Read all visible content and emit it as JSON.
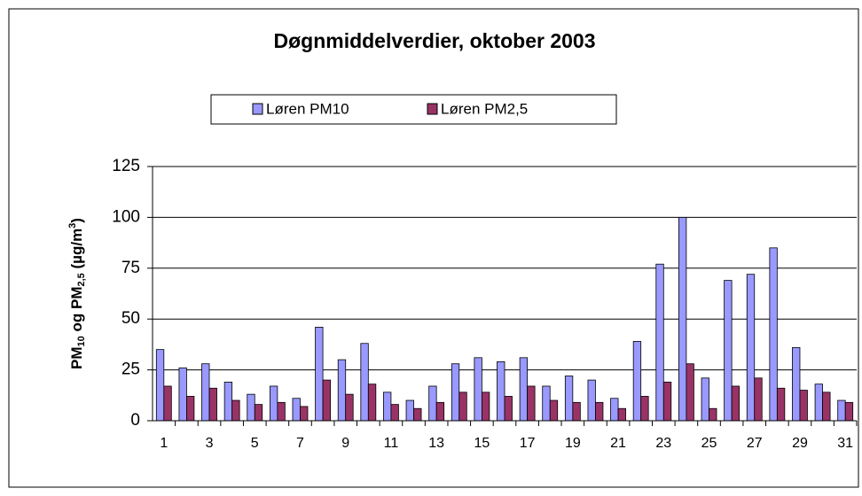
{
  "chart_data": {
    "type": "bar",
    "title": "Døgnmiddelverdier, oktober 2003",
    "y_label": [
      "PM",
      "10",
      " og PM",
      "2,5",
      " (µg/m",
      "3",
      ")"
    ],
    "categories": [
      "1",
      null,
      "3",
      null,
      "5",
      null,
      "7",
      null,
      "9",
      null,
      "11",
      null,
      "13",
      null,
      "15",
      null,
      "17",
      null,
      "19",
      null,
      "21",
      null,
      "23",
      null,
      "25",
      null,
      "27",
      null,
      "29",
      null,
      "31"
    ],
    "series": [
      {
        "name": "Løren PM10",
        "color": "#9999ff",
        "values": [
          35,
          26,
          28,
          19,
          13,
          17,
          11,
          46,
          30,
          38,
          14,
          10,
          17,
          28,
          31,
          29,
          31,
          17,
          22,
          20,
          11,
          39,
          77,
          100,
          21,
          69,
          72,
          85,
          36,
          18,
          10
        ]
      },
      {
        "name": "Løren PM2,5",
        "color": "#993366",
        "values": [
          17,
          12,
          16,
          10,
          8,
          9,
          7,
          20,
          13,
          18,
          8,
          6,
          9,
          14,
          14,
          12,
          17,
          10,
          9,
          9,
          6,
          12,
          19,
          28,
          6,
          17,
          21,
          16,
          15,
          14,
          9
        ]
      }
    ],
    "ylim": [
      0,
      125
    ],
    "yticks": [
      0,
      25,
      50,
      75,
      100,
      125
    ],
    "grid": true,
    "legend": "top"
  }
}
